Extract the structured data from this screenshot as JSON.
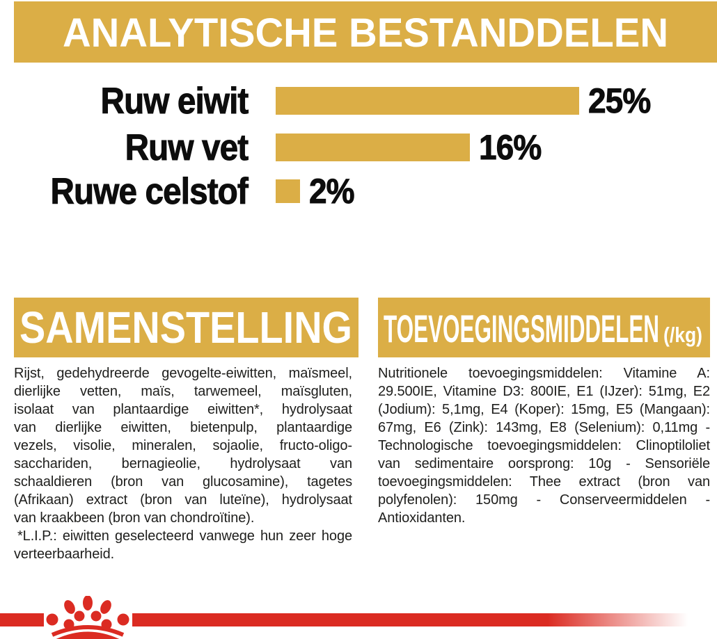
{
  "header": {
    "title": "ANALYTISCHE BESTANDDELEN"
  },
  "chart_data": {
    "type": "bar",
    "orientation": "horizontal",
    "categories": [
      "Ruw eiwit",
      "Ruw vet",
      "Ruwe celstof"
    ],
    "values": [
      25,
      16,
      2
    ],
    "labels": [
      "25%",
      "16%",
      "2%"
    ],
    "unit": "%",
    "xlim": [
      0,
      25
    ],
    "bar_color": "#DBAE46",
    "grid": false,
    "legend": false,
    "title": "ANALYTISCHE BESTANDDELEN"
  },
  "sections": {
    "composition": {
      "title": "SAMENSTELLING",
      "lines": [
        "Rijst, gedehydreerde gevogelte-eiwitten, maïsmeel,",
        "dierlijke vetten, maïs, tarwemeel, maïsgluten,",
        "isolaat van plantaardige eiwitten*, hydrolysaat",
        "van dierlijke eiwitten, bietenpulp, plantaardige",
        "vezels, visolie, mineralen, sojaolie, fructo-oligo-",
        "sacchariden, bernagieolie, hydrolysaat van",
        "schaaldieren (bron van glucosamine), tagetes",
        "(Afrikaan) extract (bron van luteïne), hydrolysaat",
        "van kraakbeen (bron van chondroïtine).",
        "*L.I.P.: eiwitten geselecteerd vanwege hun zeer hoge",
        "verteerbaarheid."
      ]
    },
    "additives": {
      "title": "TOEVOEGINGSMIDDELEN",
      "title_suffix": "(/kg)",
      "lines": [
        "Nutritionele toevoegingsmiddelen: Vitamine A:",
        "29.500IE, Vitamine D3: 800IE, E1 (IJzer): 51mg, E2",
        "(Jodium): 5,1mg, E4 (Koper): 15mg, E5 (Mangaan):",
        "67mg, E6 (Zink): 143mg, E8 (Selenium): 0,11mg -",
        "Technologische toevoegingsmiddelen: Clinoptiloliet",
        "van sedimentaire oorsprong: 10g - Sensoriële",
        "toevoegingsmiddelen: Thee extract (bron van",
        "polyfenolen): 150mg - Conserveermiddelen -",
        "Antioxidanten."
      ]
    }
  },
  "branding": {
    "logo": "royal-canin-crown"
  },
  "colors": {
    "gold": "#DBAE46",
    "red": "#DB2B22",
    "text": "#1E1E1C"
  }
}
